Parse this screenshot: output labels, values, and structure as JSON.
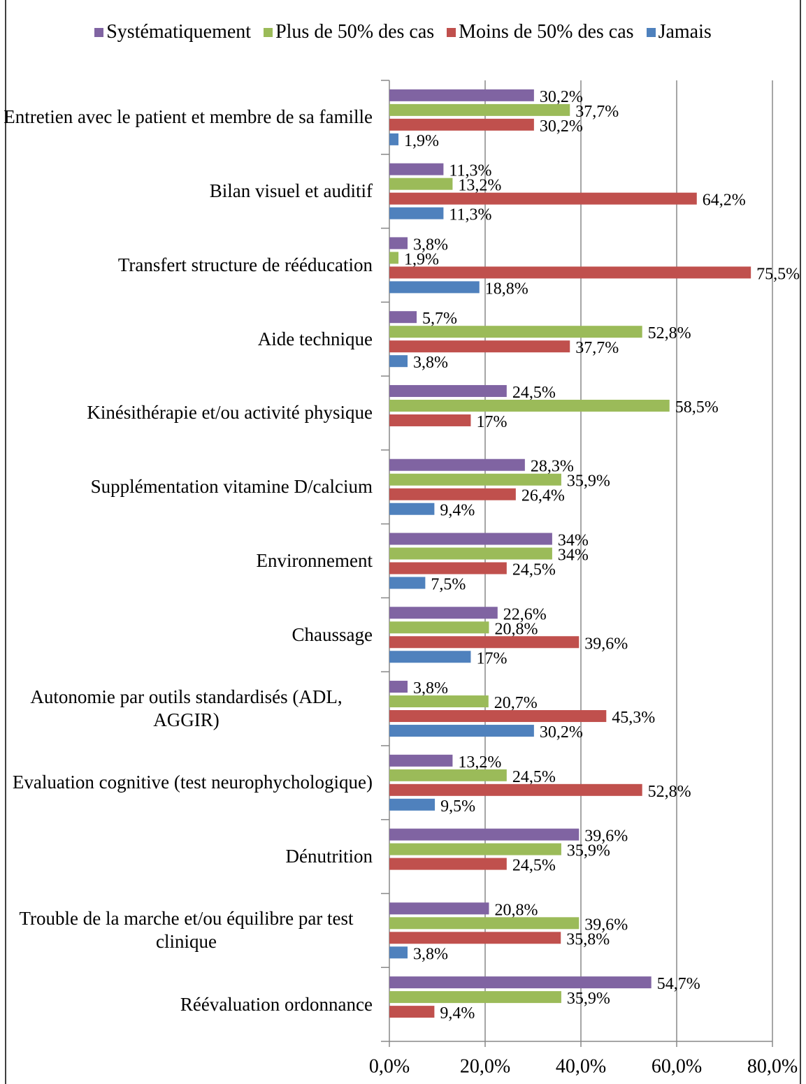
{
  "chart_data": {
    "type": "hbar",
    "categories": [
      "Entretien avec le patient et membre de sa famille",
      "Bilan visuel et auditif",
      "Transfert structure de rééducation",
      "Aide technique",
      "Kinésithérapie et/ou activité physique",
      "Supplémentation vitamine D/calcium",
      "Environnement",
      "Chaussage",
      "Autonomie par outils standardisés (ADL, AGGIR)",
      "Evaluation cognitive (test neurophychologique)",
      "Dénutrition",
      "Trouble de la marche et/ou équilibre par test clinique",
      "Réévaluation ordonnance"
    ],
    "series": [
      {
        "name": "Systématiquement",
        "color": "#8064a2",
        "values": [
          30.2,
          11.3,
          3.8,
          5.7,
          24.5,
          28.3,
          34,
          22.6,
          3.8,
          13.2,
          39.6,
          20.8,
          54.7
        ],
        "value_labels": [
          "30,2%",
          "11,3%",
          "3,8%",
          "5,7%",
          "24,5%",
          "28,3%",
          "34%",
          "22,6%",
          "3,8%",
          "13,2%",
          "39,6%",
          "20,8%",
          "54,7%"
        ]
      },
      {
        "name": "Plus de 50% des cas",
        "color": "#9bbb59",
        "values": [
          37.7,
          13.2,
          1.9,
          52.8,
          58.5,
          35.9,
          34,
          20.8,
          20.7,
          24.5,
          35.9,
          39.6,
          35.9
        ],
        "value_labels": [
          "37,7%",
          "13,2%",
          "1,9%",
          "52,8%",
          "58,5%",
          "35,9%",
          "34%",
          "20,8%",
          "20,7%",
          "24,5%",
          "35,9%",
          "39,6%",
          "35,9%"
        ]
      },
      {
        "name": "Moins de 50% des cas",
        "color": "#c0504d",
        "values": [
          30.2,
          64.2,
          75.5,
          37.7,
          17,
          26.4,
          24.5,
          39.6,
          45.3,
          52.8,
          24.5,
          35.8,
          9.4
        ],
        "value_labels": [
          "30,2%",
          "64,2%",
          "75,5%",
          "37,7%",
          "17%",
          "26,4%",
          "24,5%",
          "39,6%",
          "45,3%",
          "52,8%",
          "24,5%",
          "35,8%",
          "9,4%"
        ]
      },
      {
        "name": "Jamais",
        "color": "#4f81bd",
        "values": [
          1.9,
          11.3,
          18.8,
          3.8,
          null,
          9.4,
          7.5,
          17,
          30.2,
          9.5,
          null,
          3.8,
          null
        ],
        "value_labels": [
          "1,9%",
          "11,3%",
          "18,8%",
          "3,8%",
          null,
          "9,4%",
          "7,5%",
          "17%",
          "30,2%",
          "9,5%",
          null,
          "3,8%",
          null
        ]
      }
    ],
    "xlim": [
      0,
      80
    ],
    "xticks": [
      {
        "value": 0,
        "label": "0,0%"
      },
      {
        "value": 20,
        "label": "20,0%"
      },
      {
        "value": 40,
        "label": "40,0%"
      },
      {
        "value": 60,
        "label": "60,0%"
      },
      {
        "value": 80,
        "label": "80,0%"
      }
    ],
    "grid": true
  }
}
